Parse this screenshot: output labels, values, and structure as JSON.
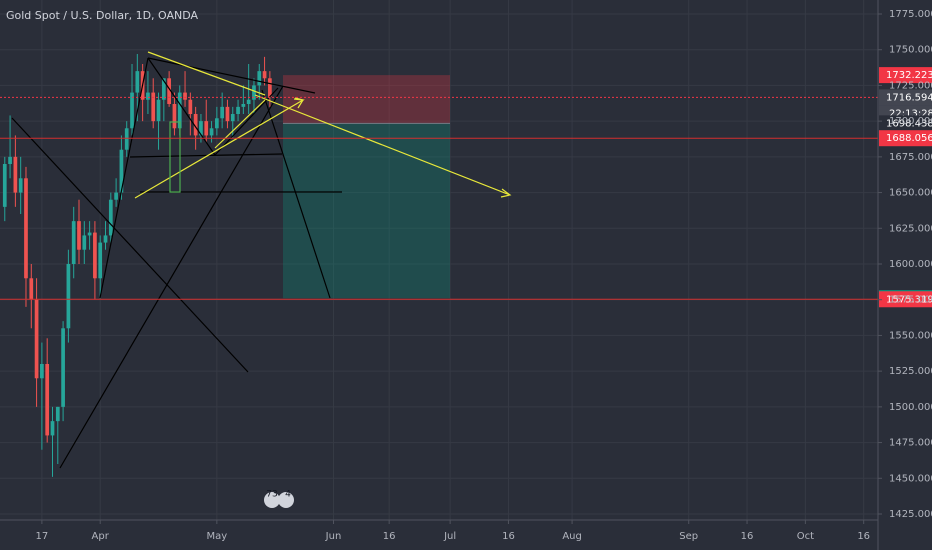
{
  "chart_data": {
    "type": "candlestick",
    "title": "Gold Spot / U.S. Dollar, 1D, OANDA",
    "up_color": "#26a69a",
    "down_color": "#ef5350",
    "x": [
      -7,
      -6,
      -5,
      -4,
      -3,
      -2,
      -1,
      0,
      1,
      2,
      3,
      4,
      5,
      6,
      7,
      8,
      9,
      10,
      11,
      12,
      13,
      14,
      15,
      16,
      17,
      18,
      19,
      20,
      21,
      22,
      23,
      24,
      25,
      26,
      27,
      28,
      29,
      30,
      31,
      32,
      33,
      34,
      35,
      36,
      37,
      38,
      39,
      40,
      41,
      42,
      43
    ],
    "open": [
      1640,
      1670,
      1675,
      1650,
      1660,
      1590,
      1575,
      1520,
      1530,
      1480,
      1490,
      1500,
      1555,
      1600,
      1630,
      1610,
      1620,
      1622,
      1590,
      1615,
      1620,
      1645,
      1650,
      1680,
      1695,
      1720,
      1735,
      1715,
      1720,
      1700,
      1715,
      1730,
      1712,
      1695,
      1720,
      1715,
      1705,
      1690,
      1700,
      1690,
      1695,
      1702,
      1710,
      1700,
      1705,
      1710,
      1712,
      1715,
      1725,
      1735,
      1730
    ],
    "high": [
      1675,
      1704,
      1690,
      1675,
      1668,
      1600,
      1590,
      1545,
      1548,
      1500,
      1500,
      1560,
      1610,
      1640,
      1645,
      1630,
      1630,
      1630,
      1620,
      1630,
      1650,
      1660,
      1690,
      1700,
      1740,
      1747,
      1740,
      1735,
      1730,
      1720,
      1730,
      1735,
      1720,
      1725,
      1735,
      1720,
      1710,
      1705,
      1715,
      1700,
      1710,
      1720,
      1715,
      1710,
      1715,
      1725,
      1740,
      1730,
      1740,
      1745,
      1735
    ],
    "low": [
      1630,
      1660,
      1640,
      1635,
      1570,
      1555,
      1500,
      1470,
      1475,
      1451,
      1460,
      1490,
      1545,
      1590,
      1600,
      1600,
      1610,
      1575,
      1576,
      1610,
      1615,
      1640,
      1645,
      1675,
      1690,
      1700,
      1700,
      1705,
      1695,
      1680,
      1700,
      1710,
      1690,
      1690,
      1710,
      1690,
      1680,
      1685,
      1685,
      1685,
      1690,
      1695,
      1695,
      1688,
      1700,
      1705,
      1705,
      1705,
      1715,
      1725,
      1710
    ],
    "close": [
      1670,
      1675,
      1650,
      1660,
      1590,
      1575,
      1520,
      1530,
      1480,
      1490,
      1500,
      1555,
      1600,
      1630,
      1610,
      1620,
      1622,
      1590,
      1615,
      1620,
      1645,
      1650,
      1680,
      1695,
      1720,
      1735,
      1715,
      1720,
      1700,
      1715,
      1730,
      1712,
      1695,
      1720,
      1715,
      1705,
      1690,
      1700,
      1690,
      1695,
      1702,
      1710,
      1700,
      1705,
      1710,
      1712,
      1715,
      1725,
      1735,
      1730,
      1717
    ],
    "xlim": [
      -7.9,
      157.7
    ],
    "xticks": [
      {
        "value": 0,
        "label": "17"
      },
      {
        "value": 11,
        "label": "Apr"
      },
      {
        "value": 33,
        "label": "May"
      },
      {
        "value": 55,
        "label": "Jun"
      },
      {
        "value": 65.5,
        "label": "16"
      },
      {
        "value": 77,
        "label": "Jul"
      },
      {
        "value": 88,
        "label": "16"
      },
      {
        "value": 100,
        "label": "Aug"
      },
      {
        "value": 122,
        "label": "Sep"
      },
      {
        "value": 133,
        "label": "16"
      },
      {
        "value": 144,
        "label": "Oct"
      },
      {
        "value": 155,
        "label": "16"
      }
    ],
    "ylim": [
      1420.8,
      1784.8
    ],
    "yticks": [
      {
        "value": 1425,
        "label": "1425.000"
      },
      {
        "value": 1450,
        "label": "1450.000"
      },
      {
        "value": 1475,
        "label": "1475.000"
      },
      {
        "value": 1500,
        "label": "1500.000"
      },
      {
        "value": 1525,
        "label": "1525.000"
      },
      {
        "value": 1550,
        "label": "1550.000"
      },
      {
        "value": 1575,
        "label": "1575.000"
      },
      {
        "value": 1600,
        "label": "1600.000"
      },
      {
        "value": 1625,
        "label": "1625.000"
      },
      {
        "value": 1650,
        "label": "1650.000"
      },
      {
        "value": 1675,
        "label": "1675.000"
      },
      {
        "value": 1700,
        "label": "1700.000"
      },
      {
        "value": 1725,
        "label": "1725.000"
      },
      {
        "value": 1750,
        "label": "1750.000"
      },
      {
        "value": 1775,
        "label": "1775.000"
      }
    ],
    "grid": true,
    "levels": [
      {
        "value": 1732.223,
        "label": "1732.223",
        "color": "#f23645"
      },
      {
        "value": 1716.594,
        "label": "1716.594",
        "color": "#434651",
        "line": "dotted"
      },
      {
        "value": 1698.438,
        "label": "1698.438",
        "color": "#2a2e39"
      },
      {
        "value": 1688.056,
        "label": "1688.056",
        "color": "#f23645",
        "line": "solid"
      },
      {
        "value": 1576.06,
        "label": "1576.060",
        "color": "#089981"
      },
      {
        "value": 1575.319,
        "label": "1575.319",
        "color": "#f23645",
        "line": "solid"
      }
    ],
    "countdown": "22:13:28",
    "events": [
      "73",
      "4"
    ]
  }
}
